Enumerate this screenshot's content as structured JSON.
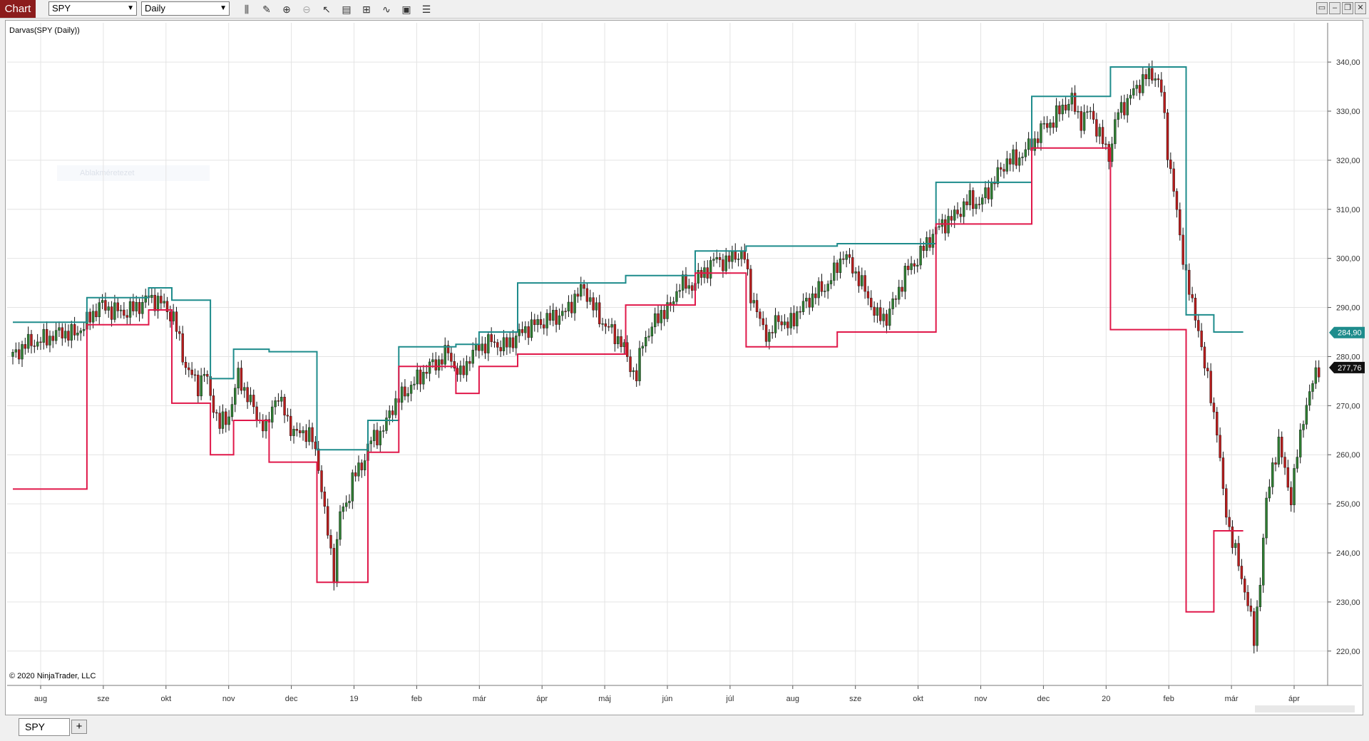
{
  "toolbar": {
    "chart_tab": "Chart",
    "instrument": "SPY",
    "interval": "Daily",
    "icons": [
      "bars-type-icon",
      "draw-pencil-icon",
      "zoom-in-icon",
      "zoom-out-icon",
      "pointer-icon",
      "data-box-icon",
      "strategies-icon",
      "indicators-icon",
      "drawing-tools-icon",
      "properties-icon"
    ],
    "window_buttons": [
      "minimize-icon",
      "maximize-icon",
      "restore-icon",
      "close-icon"
    ]
  },
  "chart_label": "Darvas(SPY (Daily))",
  "ghost_text": "Ablakméretezet",
  "copyright": "© 2020 NinjaTrader, LLC",
  "sheet_tab": "SPY",
  "add_tab": "+",
  "colors": {
    "up": "#2e7d32",
    "down": "#b71c1c",
    "upper": "#1e8c8c",
    "lower": "#e0184a",
    "grid": "#e4e4e4"
  },
  "chart_data": {
    "type": "line",
    "ylim": [
      213,
      348
    ],
    "y_ticks": [
      "340,00",
      "330,00",
      "320,00",
      "310,00",
      "300,00",
      "290,00",
      "280,00",
      "270,00",
      "260,00",
      "250,00",
      "240,00",
      "230,00",
      "220,00"
    ],
    "x_ticks": [
      "aug",
      "sze",
      "okt",
      "nov",
      "dec",
      "19",
      "feb",
      "már",
      "ápr",
      "máj",
      "jún",
      "júl",
      "aug",
      "sze",
      "okt",
      "nov",
      "dec",
      "20",
      "feb",
      "már",
      "ápr"
    ],
    "last_upper": "284,90",
    "last_price": "277,76",
    "series": [
      {
        "name": "Darvas upper",
        "points": [
          [
            0,
            287
          ],
          [
            48,
            287
          ],
          [
            48,
            292
          ],
          [
            88,
            292
          ],
          [
            88,
            294
          ],
          [
            103,
            294
          ],
          [
            103,
            291.5
          ],
          [
            128,
            291.5
          ],
          [
            128,
            275.5
          ],
          [
            143,
            275.5
          ],
          [
            143,
            281.5
          ],
          [
            166,
            281.5
          ],
          [
            166,
            281
          ],
          [
            197,
            281
          ],
          [
            197,
            261
          ],
          [
            230,
            261
          ],
          [
            230,
            267
          ],
          [
            250,
            267
          ],
          [
            250,
            282
          ],
          [
            287,
            282
          ],
          [
            287,
            282.5
          ],
          [
            302,
            282.5
          ],
          [
            302,
            285
          ],
          [
            327,
            285
          ],
          [
            327,
            295
          ],
          [
            397,
            295
          ],
          [
            397,
            296.5
          ],
          [
            442,
            296.5
          ],
          [
            442,
            301.5
          ],
          [
            475,
            301.5
          ],
          [
            475,
            302.5
          ],
          [
            534,
            302.5
          ],
          [
            534,
            303
          ],
          [
            598,
            303
          ],
          [
            598,
            315.5
          ],
          [
            660,
            315.5
          ],
          [
            660,
            333
          ],
          [
            711,
            333
          ],
          [
            711,
            339
          ],
          [
            760,
            339
          ],
          [
            760,
            288.5
          ],
          [
            778,
            288.5
          ],
          [
            778,
            285
          ],
          [
            797,
            285
          ]
        ]
      },
      {
        "name": "Darvas lower",
        "points": [
          [
            0,
            253
          ],
          [
            48,
            253
          ],
          [
            48,
            286.5
          ],
          [
            88,
            286.5
          ],
          [
            88,
            289.5
          ],
          [
            103,
            289.5
          ],
          [
            103,
            270.5
          ],
          [
            128,
            270.5
          ],
          [
            128,
            260
          ],
          [
            143,
            260
          ],
          [
            143,
            267
          ],
          [
            166,
            267
          ],
          [
            166,
            258.5
          ],
          [
            197,
            258.5
          ],
          [
            197,
            234
          ],
          [
            230,
            234
          ],
          [
            230,
            260.5
          ],
          [
            250,
            260.5
          ],
          [
            250,
            278
          ],
          [
            287,
            278
          ],
          [
            287,
            272.5
          ],
          [
            302,
            272.5
          ],
          [
            302,
            278
          ],
          [
            327,
            278
          ],
          [
            327,
            280.5
          ],
          [
            397,
            280.5
          ],
          [
            397,
            290.5
          ],
          [
            442,
            290.5
          ],
          [
            442,
            297
          ],
          [
            475,
            297
          ],
          [
            475,
            282
          ],
          [
            534,
            282
          ],
          [
            534,
            285
          ],
          [
            598,
            285
          ],
          [
            598,
            307
          ],
          [
            660,
            307
          ],
          [
            660,
            322.5
          ],
          [
            711,
            322.5
          ],
          [
            711,
            285.5
          ],
          [
            760,
            285.5
          ],
          [
            760,
            228
          ],
          [
            778,
            228
          ],
          [
            778,
            244.5
          ],
          [
            797,
            244.5
          ]
        ]
      },
      {
        "name": "SPY close",
        "points": [
          [
            0,
            280
          ],
          [
            8,
            282.5
          ],
          [
            16,
            283
          ],
          [
            24,
            284
          ],
          [
            32,
            285
          ],
          [
            40,
            284.5
          ],
          [
            48,
            287
          ],
          [
            56,
            290.5
          ],
          [
            64,
            289.5
          ],
          [
            72,
            289
          ],
          [
            80,
            290
          ],
          [
            88,
            292
          ],
          [
            96,
            291
          ],
          [
            104,
            288
          ],
          [
            112,
            278
          ],
          [
            120,
            274
          ],
          [
            124,
            277
          ],
          [
            128,
            272
          ],
          [
            134,
            266
          ],
          [
            140,
            268
          ],
          [
            146,
            276
          ],
          [
            152,
            272
          ],
          [
            158,
            268
          ],
          [
            164,
            265
          ],
          [
            170,
            272
          ],
          [
            176,
            269
          ],
          [
            182,
            264
          ],
          [
            188,
            265
          ],
          [
            194,
            263
          ],
          [
            198,
            258
          ],
          [
            202,
            248
          ],
          [
            206,
            240
          ],
          [
            208,
            236
          ],
          [
            212,
            248
          ],
          [
            216,
            250
          ],
          [
            220,
            255
          ],
          [
            226,
            258
          ],
          [
            232,
            263
          ],
          [
            240,
            265
          ],
          [
            246,
            270
          ],
          [
            252,
            272
          ],
          [
            258,
            274
          ],
          [
            264,
            276
          ],
          [
            270,
            278
          ],
          [
            276,
            279
          ],
          [
            282,
            281
          ],
          [
            286,
            278
          ],
          [
            290,
            276
          ],
          [
            296,
            280
          ],
          [
            302,
            282
          ],
          [
            310,
            283
          ],
          [
            318,
            282
          ],
          [
            326,
            284
          ],
          [
            334,
            286
          ],
          [
            342,
            287
          ],
          [
            350,
            288
          ],
          [
            358,
            289
          ],
          [
            364,
            292
          ],
          [
            370,
            294
          ],
          [
            376,
            290
          ],
          [
            382,
            287
          ],
          [
            388,
            285
          ],
          [
            394,
            283
          ],
          [
            400,
            278
          ],
          [
            404,
            276
          ],
          [
            408,
            283
          ],
          [
            414,
            286
          ],
          [
            420,
            289
          ],
          [
            426,
            290
          ],
          [
            432,
            295
          ],
          [
            438,
            294
          ],
          [
            444,
            296
          ],
          [
            450,
            298
          ],
          [
            456,
            300
          ],
          [
            462,
            299
          ],
          [
            468,
            301
          ],
          [
            474,
            300
          ],
          [
            478,
            293
          ],
          [
            484,
            287
          ],
          [
            490,
            284
          ],
          [
            496,
            288
          ],
          [
            502,
            286
          ],
          [
            508,
            289
          ],
          [
            514,
            291
          ],
          [
            520,
            293
          ],
          [
            526,
            294
          ],
          [
            532,
            297
          ],
          [
            538,
            301
          ],
          [
            542,
            299
          ],
          [
            548,
            296
          ],
          [
            554,
            292
          ],
          [
            560,
            288
          ],
          [
            566,
            288
          ],
          [
            572,
            292
          ],
          [
            578,
            297
          ],
          [
            584,
            299
          ],
          [
            590,
            302
          ],
          [
            596,
            305
          ],
          [
            602,
            307
          ],
          [
            608,
            308
          ],
          [
            614,
            310
          ],
          [
            620,
            312
          ],
          [
            626,
            311
          ],
          [
            632,
            314
          ],
          [
            638,
            317
          ],
          [
            644,
            320
          ],
          [
            650,
            320
          ],
          [
            656,
            322
          ],
          [
            662,
            324
          ],
          [
            668,
            327
          ],
          [
            674,
            328
          ],
          [
            680,
            331
          ],
          [
            686,
            332
          ],
          [
            692,
            328
          ],
          [
            698,
            330
          ],
          [
            704,
            325
          ],
          [
            710,
            321
          ],
          [
            716,
            330
          ],
          [
            722,
            332
          ],
          [
            728,
            335
          ],
          [
            734,
            337
          ],
          [
            740,
            337.5
          ],
          [
            744,
            334
          ],
          [
            748,
            322
          ],
          [
            752,
            314
          ],
          [
            756,
            304
          ],
          [
            760,
            297
          ],
          [
            764,
            290
          ],
          [
            768,
            286
          ],
          [
            772,
            278
          ],
          [
            776,
            272
          ],
          [
            780,
            265
          ],
          [
            784,
            252
          ],
          [
            788,
            245
          ],
          [
            792,
            240
          ],
          [
            796,
            235
          ],
          [
            800,
            230
          ],
          [
            804,
            222
          ],
          [
            808,
            235
          ],
          [
            812,
            250
          ],
          [
            816,
            258
          ],
          [
            820,
            262
          ],
          [
            824,
            257
          ],
          [
            828,
            251
          ],
          [
            832,
            260
          ],
          [
            836,
            268
          ],
          [
            840,
            272
          ],
          [
            844,
            277
          ],
          [
            848,
            279
          ]
        ]
      }
    ]
  }
}
